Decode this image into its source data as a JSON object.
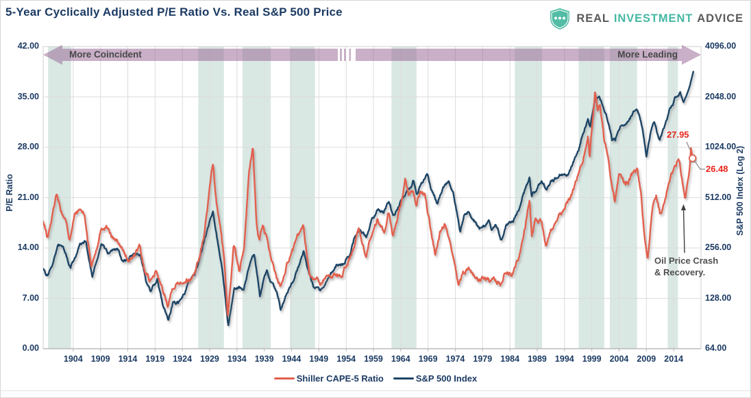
{
  "header": {
    "title": "5-Year Cyclically Adjusted P/E Ratio Vs. Real S&P 500 Price",
    "logo": {
      "word1": "REAL",
      "word2": "INVESTMENT",
      "word3": "ADVICE"
    }
  },
  "banner": {
    "left_label": "More Coincident",
    "right_label": "More Leading"
  },
  "legend": [
    {
      "label": "Shiller CAPE-5 Ratio",
      "color": "#E2604E"
    },
    {
      "label": "S&P 500 Index",
      "color": "#1E4566"
    }
  ],
  "colors": {
    "red_line": "#E2604E",
    "blue_line": "#1E4566",
    "navy_text": "#1B3A63",
    "gray_text": "#4F4F4F",
    "band": "#DAE8E4",
    "arrow_fill": "#93608F",
    "grid": "#DCDCDC",
    "axis_line": "#ADADAD",
    "callout_text_red": "#E8231A",
    "callout_line_gray": "#8A8A8A",
    "logo_teal": "#45B8A3",
    "logo_gray": "#58595B"
  },
  "chart_data": {
    "type": "line",
    "x_axis": {
      "start": 1898.5,
      "end": 2019.0,
      "tick_years": [
        1904,
        1909,
        1914,
        1919,
        1924,
        1929,
        1934,
        1939,
        1944,
        1949,
        1954,
        1959,
        1964,
        1969,
        1974,
        1979,
        1984,
        1989,
        1994,
        1999,
        2004,
        2009,
        2014
      ]
    },
    "y_left": {
      "label": "P/E Ratio",
      "min": 0,
      "max": 42,
      "ticks": [
        0,
        7,
        14,
        21,
        28,
        35,
        42
      ],
      "tick_labels": [
        "0.00",
        "7.00",
        "14.00",
        "21.00",
        "28.00",
        "35.00",
        "42.00"
      ]
    },
    "y_right": {
      "label": "S&P 500 Index (Log 2)",
      "min": 64,
      "max": 4096,
      "scale": "log2",
      "ticks": [
        64,
        128,
        256,
        512,
        1024,
        2048,
        4096
      ],
      "tick_labels": [
        "64.00",
        "128.00",
        "256.00",
        "512.00",
        "1024.00",
        "2048.00",
        "4096.00"
      ]
    },
    "shaded_bands": [
      [
        1899.4,
        1903.6
      ],
      [
        1926.9,
        1931.6
      ],
      [
        1935.0,
        1940.2
      ],
      [
        1943.7,
        1948.3
      ],
      [
        1962.3,
        1966.9
      ],
      [
        1984.9,
        1989.9
      ],
      [
        1996.6,
        2001.3
      ],
      [
        2002.3,
        2007.3
      ],
      [
        2012.9,
        2014.8
      ]
    ],
    "series": [
      {
        "name": "Shiller CAPE-5 Ratio",
        "axis": "left",
        "color": "#E2604E",
        "points": [
          [
            1898.5,
            17.6
          ],
          [
            1899.3,
            15.4
          ],
          [
            1900.1,
            18.2
          ],
          [
            1901.0,
            21.8
          ],
          [
            1901.8,
            19.2
          ],
          [
            1902.6,
            17.8
          ],
          [
            1903.3,
            15.3
          ],
          [
            1904.3,
            18.6
          ],
          [
            1905.3,
            19.3
          ],
          [
            1906.1,
            18.5
          ],
          [
            1907.3,
            11.5
          ],
          [
            1908.3,
            14.2
          ],
          [
            1909.2,
            16.9
          ],
          [
            1910.2,
            17.1
          ],
          [
            1911.1,
            15.4
          ],
          [
            1912.1,
            14.9
          ],
          [
            1913.1,
            13.6
          ],
          [
            1914.3,
            12.0
          ],
          [
            1915.3,
            13.3
          ],
          [
            1916.2,
            14.2
          ],
          [
            1917.2,
            10.4
          ],
          [
            1918.2,
            9.3
          ],
          [
            1919.3,
            10.9
          ],
          [
            1920.3,
            8.2
          ],
          [
            1921.3,
            6.3
          ],
          [
            1922.3,
            8.8
          ],
          [
            1923.3,
            9.3
          ],
          [
            1924.3,
            9.6
          ],
          [
            1925.6,
            9.7
          ],
          [
            1926.5,
            11.3
          ],
          [
            1927.3,
            13.2
          ],
          [
            1928.1,
            16.5
          ],
          [
            1929.0,
            22.0
          ],
          [
            1929.6,
            25.5
          ],
          [
            1930.2,
            20.5
          ],
          [
            1930.9,
            17.0
          ],
          [
            1931.6,
            13.0
          ],
          [
            1932.3,
            4.6
          ],
          [
            1933.4,
            14.8
          ],
          [
            1934.4,
            10.8
          ],
          [
            1935.3,
            14.0
          ],
          [
            1936.2,
            24.6
          ],
          [
            1936.9,
            28.05
          ],
          [
            1937.6,
            17.6
          ],
          [
            1938.1,
            14.8
          ],
          [
            1938.7,
            17.0
          ],
          [
            1939.5,
            15.3
          ],
          [
            1940.3,
            12.2
          ],
          [
            1941.2,
            10.0
          ],
          [
            1942.0,
            8.7
          ],
          [
            1943.2,
            12.2
          ],
          [
            1944.2,
            13.4
          ],
          [
            1945.3,
            15.7
          ],
          [
            1946.2,
            17.0
          ],
          [
            1947.3,
            10.3
          ],
          [
            1948.3,
            9.9
          ],
          [
            1949.3,
            9.2
          ],
          [
            1950.3,
            10.2
          ],
          [
            1951.3,
            10.0
          ],
          [
            1952.3,
            10.6
          ],
          [
            1953.3,
            10.0
          ],
          [
            1954.3,
            12.0
          ],
          [
            1955.4,
            13.9
          ],
          [
            1956.3,
            17.1
          ],
          [
            1957.6,
            12.6
          ],
          [
            1958.5,
            15.5
          ],
          [
            1959.7,
            17.7
          ],
          [
            1961.0,
            16.1
          ],
          [
            1961.8,
            18.9
          ],
          [
            1962.6,
            15.7
          ],
          [
            1963.5,
            18.0
          ],
          [
            1964.8,
            23.2
          ],
          [
            1965.5,
            20.9
          ],
          [
            1966.2,
            22.0
          ],
          [
            1966.9,
            19.8
          ],
          [
            1967.5,
            21.8
          ],
          [
            1968.4,
            21.4
          ],
          [
            1969.3,
            17.5
          ],
          [
            1970.3,
            13.1
          ],
          [
            1971.2,
            16.3
          ],
          [
            1972.2,
            17.3
          ],
          [
            1973.2,
            13.7
          ],
          [
            1974.6,
            8.8
          ],
          [
            1975.4,
            10.5
          ],
          [
            1976.4,
            11.4
          ],
          [
            1977.3,
            10.3
          ],
          [
            1978.3,
            9.3
          ],
          [
            1979.3,
            9.9
          ],
          [
            1980.3,
            9.3
          ],
          [
            1981.2,
            9.6
          ],
          [
            1982.3,
            8.9
          ],
          [
            1983.2,
            11.1
          ],
          [
            1984.3,
            10.3
          ],
          [
            1985.3,
            12.0
          ],
          [
            1986.3,
            14.6
          ],
          [
            1987.6,
            20.8
          ],
          [
            1988.0,
            15.8
          ],
          [
            1988.7,
            17.9
          ],
          [
            1989.7,
            17.7
          ],
          [
            1990.6,
            14.8
          ],
          [
            1991.5,
            16.5
          ],
          [
            1992.9,
            18.6
          ],
          [
            1994.0,
            19.2
          ],
          [
            1995.1,
            21.1
          ],
          [
            1996.7,
            24.6
          ],
          [
            1997.6,
            27.0
          ],
          [
            1998.3,
            29.5
          ],
          [
            1998.6,
            26.8
          ],
          [
            1999.6,
            35.8
          ],
          [
            2000.1,
            33.2
          ],
          [
            2000.5,
            34.3
          ],
          [
            2001.3,
            28.5
          ],
          [
            2002.0,
            26.6
          ],
          [
            2002.6,
            23.0
          ],
          [
            2003.2,
            20.6
          ],
          [
            2004.0,
            24.0
          ],
          [
            2004.8,
            23.2
          ],
          [
            2005.6,
            23.2
          ],
          [
            2006.4,
            24.3
          ],
          [
            2007.3,
            25.1
          ],
          [
            2008.0,
            21.5
          ],
          [
            2008.6,
            16.0
          ],
          [
            2009.2,
            12.0
          ],
          [
            2010.0,
            19.0
          ],
          [
            2010.8,
            21.1
          ],
          [
            2011.5,
            18.7
          ],
          [
            2012.3,
            20.6
          ],
          [
            2013.2,
            23.6
          ],
          [
            2014.4,
            25.8
          ],
          [
            2015.0,
            26.2
          ],
          [
            2015.6,
            23.3
          ],
          [
            2016.1,
            20.8
          ],
          [
            2016.55,
            23.2
          ],
          [
            2016.75,
            24.0
          ],
          [
            2016.95,
            25.2
          ],
          [
            2017.15,
            27.95
          ],
          [
            2017.45,
            26.48
          ]
        ]
      },
      {
        "name": "S&P 500 Index",
        "axis": "right",
        "color": "#1E4566",
        "points": [
          [
            1898.5,
            190
          ],
          [
            1899.3,
            172
          ],
          [
            1900.3,
            210
          ],
          [
            1901.2,
            268
          ],
          [
            1902.2,
            255
          ],
          [
            1903.5,
            194
          ],
          [
            1904.5,
            230
          ],
          [
            1905.3,
            277
          ],
          [
            1906.3,
            282
          ],
          [
            1907.5,
            169
          ],
          [
            1908.3,
            215
          ],
          [
            1909.2,
            272
          ],
          [
            1910.3,
            238
          ],
          [
            1911.2,
            250
          ],
          [
            1912.2,
            252
          ],
          [
            1913.2,
            212
          ],
          [
            1914.3,
            225
          ],
          [
            1915.3,
            232
          ],
          [
            1916.3,
            240
          ],
          [
            1917.3,
            165
          ],
          [
            1918.2,
            137
          ],
          [
            1919.4,
            166
          ],
          [
            1920.3,
            120
          ],
          [
            1921.4,
            93
          ],
          [
            1922.3,
            125
          ],
          [
            1923.2,
            120
          ],
          [
            1924.3,
            137
          ],
          [
            1925.3,
            160
          ],
          [
            1926.3,
            177
          ],
          [
            1927.3,
            228
          ],
          [
            1928.2,
            292
          ],
          [
            1929.6,
            425
          ],
          [
            1930.3,
            300
          ],
          [
            1931.3,
            190
          ],
          [
            1932.4,
            87
          ],
          [
            1933.5,
            145
          ],
          [
            1934.3,
            150
          ],
          [
            1935.2,
            140
          ],
          [
            1936.3,
            205
          ],
          [
            1937.2,
            232
          ],
          [
            1938.2,
            134
          ],
          [
            1938.8,
            160
          ],
          [
            1939.5,
            185
          ],
          [
            1940.3,
            158
          ],
          [
            1941.3,
            138
          ],
          [
            1942.0,
            110
          ],
          [
            1943.2,
            138
          ],
          [
            1944.2,
            158
          ],
          [
            1945.3,
            198
          ],
          [
            1946.2,
            246
          ],
          [
            1947.0,
            185
          ],
          [
            1948.0,
            152
          ],
          [
            1949.2,
            140
          ],
          [
            1950.2,
            158
          ],
          [
            1951.2,
            182
          ],
          [
            1952.3,
            202
          ],
          [
            1953.3,
            200
          ],
          [
            1954.7,
            235
          ],
          [
            1955.5,
            292
          ],
          [
            1956.4,
            330
          ],
          [
            1957.7,
            296
          ],
          [
            1958.6,
            368
          ],
          [
            1959.8,
            438
          ],
          [
            1960.8,
            420
          ],
          [
            1961.8,
            487
          ],
          [
            1962.6,
            390
          ],
          [
            1963.6,
            455
          ],
          [
            1964.7,
            527
          ],
          [
            1965.9,
            600
          ],
          [
            1966.3,
            645
          ],
          [
            1966.9,
            545
          ],
          [
            1967.6,
            612
          ],
          [
            1968.8,
            700
          ],
          [
            1969.8,
            560
          ],
          [
            1970.7,
            468
          ],
          [
            1971.5,
            560
          ],
          [
            1972.7,
            649
          ],
          [
            1973.6,
            555
          ],
          [
            1974.9,
            315
          ],
          [
            1975.6,
            390
          ],
          [
            1976.4,
            418
          ],
          [
            1977.4,
            375
          ],
          [
            1978.4,
            332
          ],
          [
            1979.4,
            348
          ],
          [
            1980.1,
            370
          ],
          [
            1980.6,
            330
          ],
          [
            1981.4,
            350
          ],
          [
            1982.5,
            282
          ],
          [
            1983.3,
            352
          ],
          [
            1984.6,
            372
          ],
          [
            1985.6,
            420
          ],
          [
            1986.5,
            540
          ],
          [
            1987.6,
            672
          ],
          [
            1988.0,
            522
          ],
          [
            1988.7,
            560
          ],
          [
            1989.8,
            650
          ],
          [
            1990.7,
            570
          ],
          [
            1991.6,
            648
          ],
          [
            1992.8,
            688
          ],
          [
            1993.8,
            710
          ],
          [
            1994.7,
            698
          ],
          [
            1995.6,
            830
          ],
          [
            1996.6,
            1000
          ],
          [
            1997.5,
            1260
          ],
          [
            1998.3,
            1540
          ],
          [
            1998.7,
            1350
          ],
          [
            1999.6,
            2010
          ],
          [
            2000.4,
            2050
          ],
          [
            2001.3,
            1690
          ],
          [
            2002.2,
            1420
          ],
          [
            2002.7,
            1160
          ],
          [
            2003.3,
            1140
          ],
          [
            2004.2,
            1360
          ],
          [
            2005.2,
            1430
          ],
          [
            2006.2,
            1560
          ],
          [
            2007.2,
            1800
          ],
          [
            2008.0,
            1500
          ],
          [
            2009.0,
            905
          ],
          [
            2009.8,
            1300
          ],
          [
            2010.4,
            1450
          ],
          [
            2011.4,
            1110
          ],
          [
            2012.2,
            1320
          ],
          [
            2013.2,
            1700
          ],
          [
            2014.4,
            2030
          ],
          [
            2015.2,
            2140
          ],
          [
            2015.8,
            1905
          ],
          [
            2016.4,
            2110
          ],
          [
            2016.9,
            2350
          ],
          [
            2017.3,
            2650
          ],
          [
            2017.6,
            2900
          ]
        ]
      }
    ],
    "annotations": [
      {
        "text": "27.95",
        "series": "Shiller CAPE-5 Ratio",
        "year": 2017.15,
        "value": 27.95
      },
      {
        "text": "26.48",
        "series": "Shiller CAPE-5 Ratio",
        "year": 2017.45,
        "value": 26.48,
        "marker": true
      },
      {
        "line1": "Oil Price Crash",
        "line2": "& Recovery.",
        "series": "Shiller CAPE-5 Ratio",
        "year": 2016.1,
        "value": 20.8
      }
    ]
  }
}
